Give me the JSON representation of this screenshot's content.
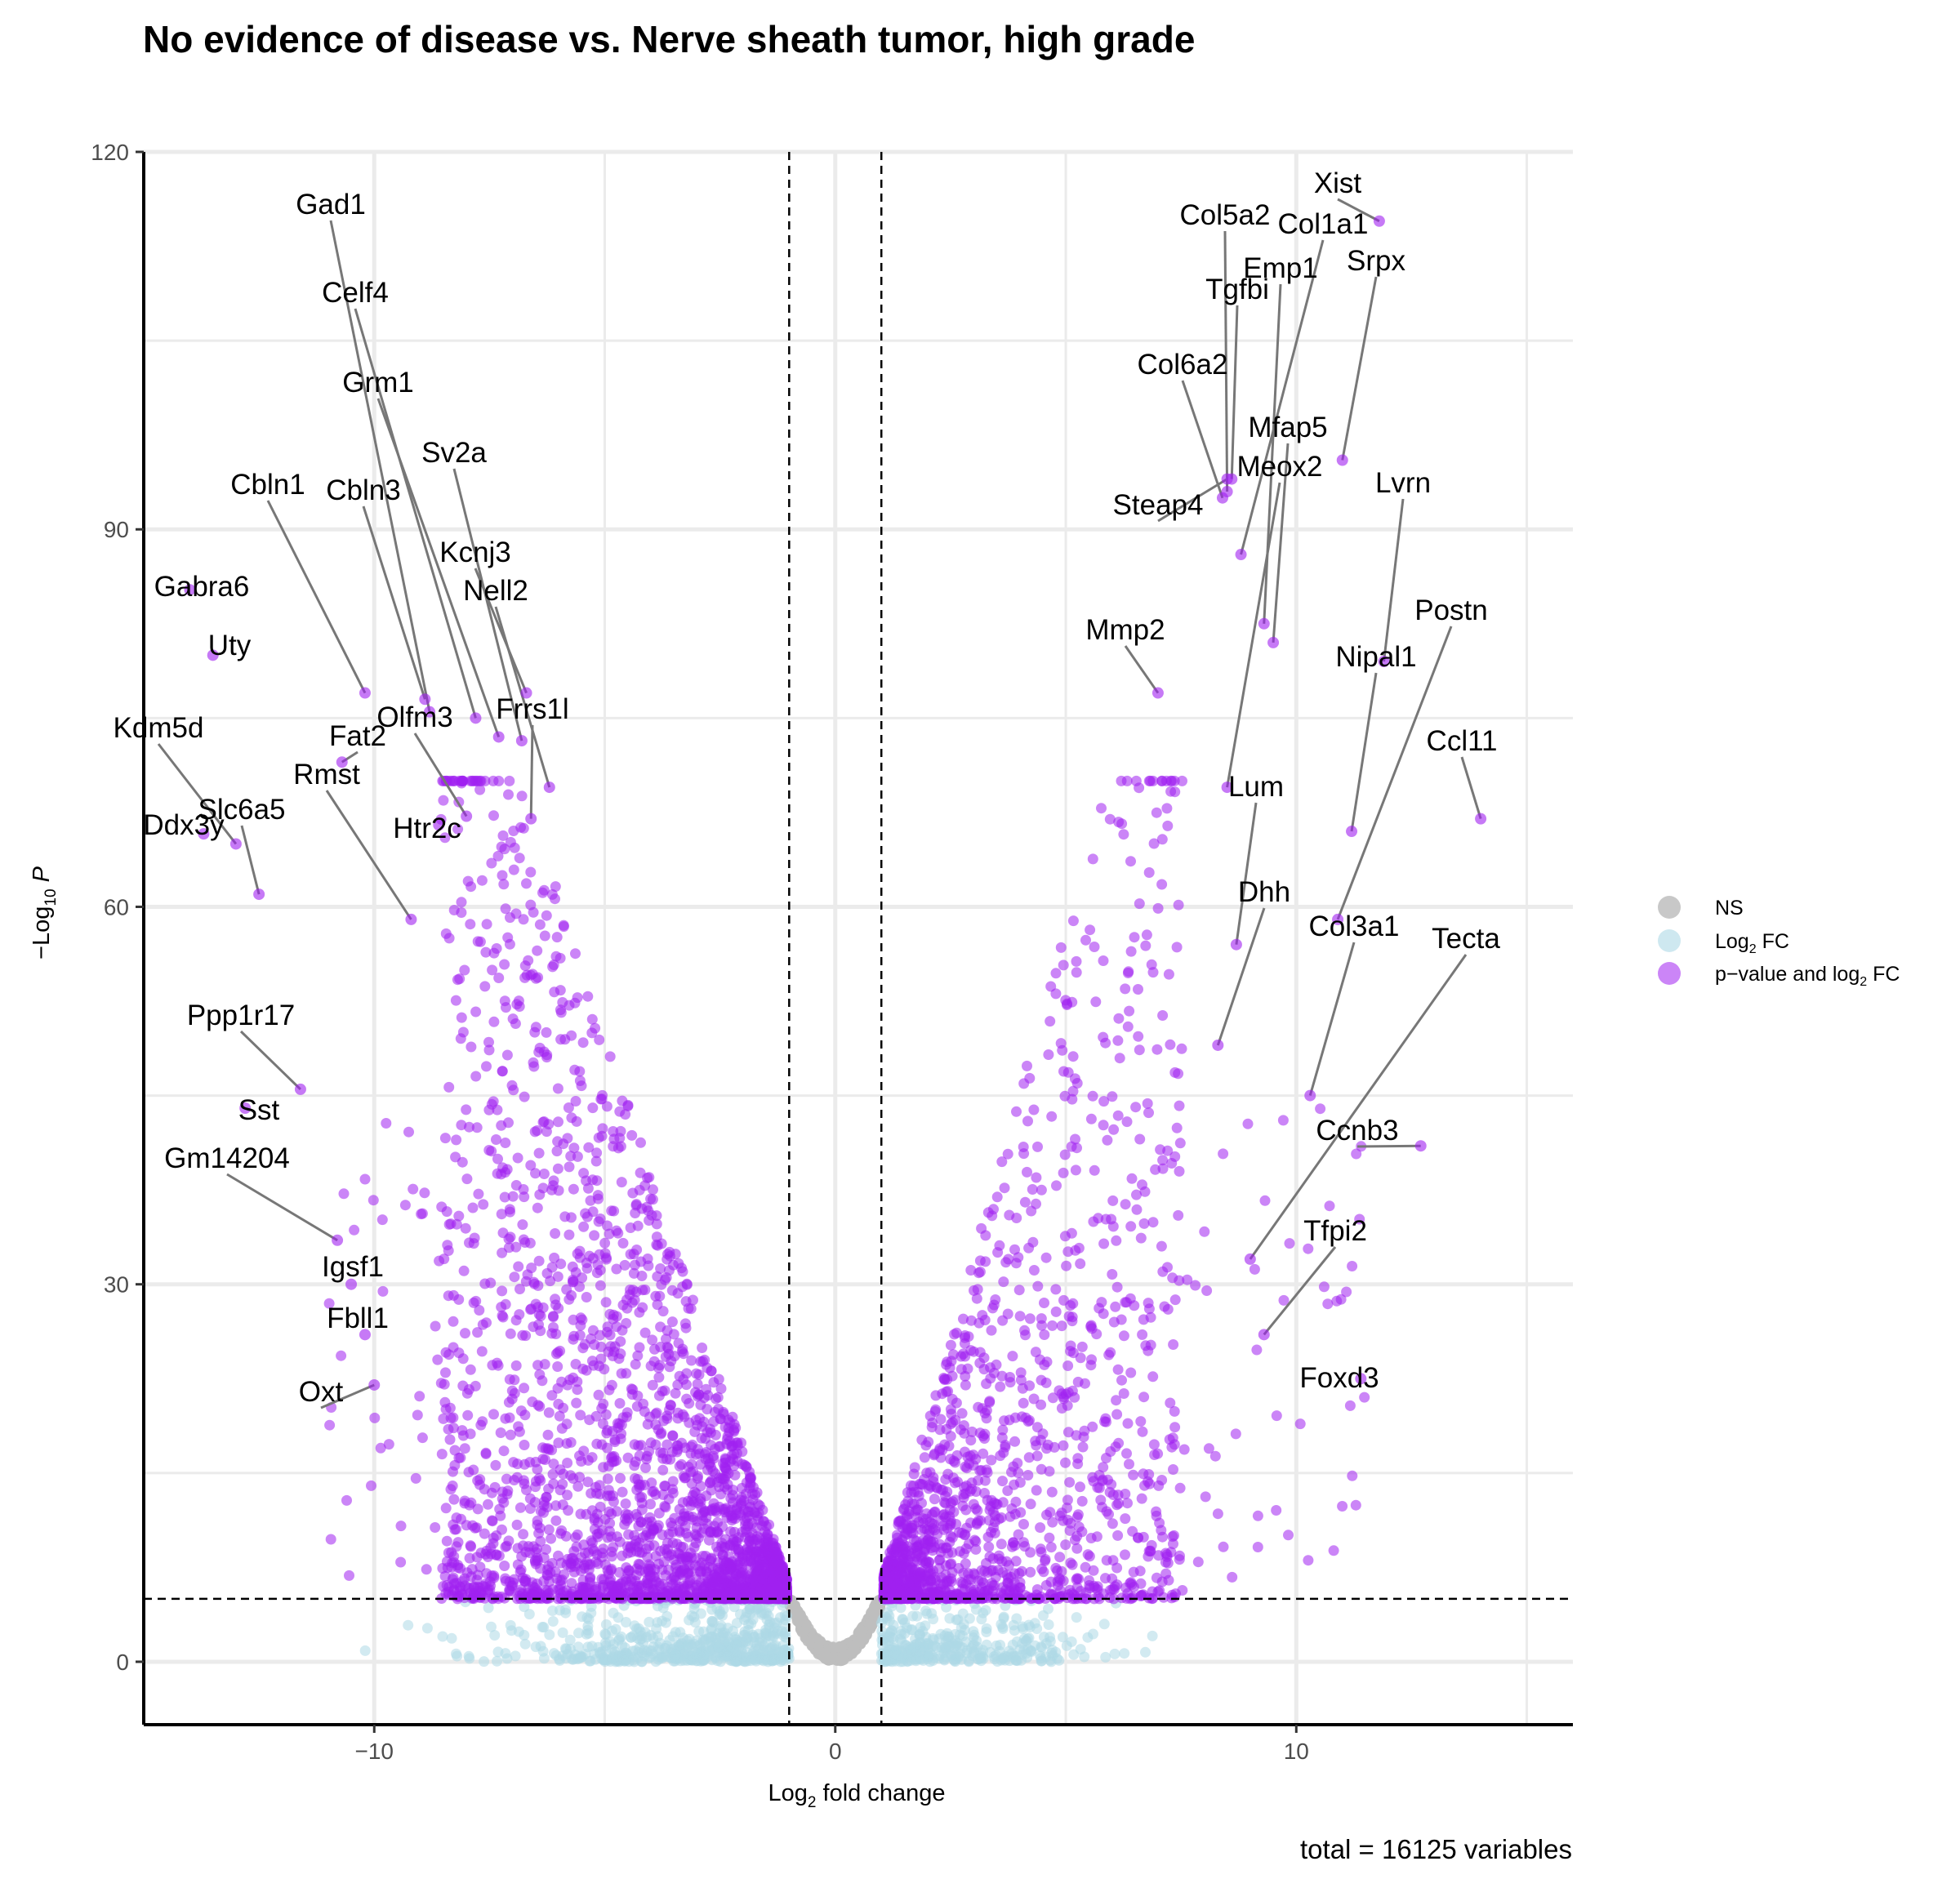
{
  "chart_data": {
    "type": "scatter",
    "title": "No evidence of disease vs. Nerve sheath tumor, high grade",
    "xlabel": "Log",
    "xlabel_sub": "2",
    "xlabel_rest": " fold change",
    "ylabel": "−Log",
    "ylabel_sub": "10",
    "ylabel_rest": " P",
    "xlim": [
      -15,
      16
    ],
    "ylim": [
      -5,
      120
    ],
    "x_ticks": [
      -10,
      0,
      10
    ],
    "x_tick_labels": [
      "−10",
      "0",
      "10"
    ],
    "y_ticks": [
      0,
      30,
      60,
      90,
      120
    ],
    "y_tick_labels": [
      "0",
      "30",
      "60",
      "90",
      "120"
    ],
    "fc_cutoff": 1,
    "p_cutoff": 5,
    "grid": true,
    "total_variables": 16125,
    "caption": "total = 16125 variables",
    "legend": {
      "position": "right",
      "entries": [
        {
          "name": "NS",
          "color": "#c8c8c8"
        },
        {
          "name": "Log",
          "sub": "2",
          "rest": " FC",
          "color": "#add8e6"
        },
        {
          "name": "p−value and log",
          "sub": "2",
          "rest": " FC",
          "color": "#a020f0"
        }
      ]
    },
    "colors": {
      "ns": "#bebebe",
      "fc": "#add8e6",
      "both": "#a020f0"
    },
    "labeled_genes": [
      {
        "gene": "Gad1",
        "x": -8.8,
        "y": 75.5
      },
      {
        "gene": "Celf4",
        "x": -7.8,
        "y": 75.0
      },
      {
        "gene": "Grm1",
        "x": -7.3,
        "y": 73.5
      },
      {
        "gene": "Sv2a",
        "x": -6.8,
        "y": 73.2
      },
      {
        "gene": "Cbln1",
        "x": -10.2,
        "y": 77.0
      },
      {
        "gene": "Cbln3",
        "x": -8.9,
        "y": 76.5
      },
      {
        "gene": "Kcnj3",
        "x": -6.7,
        "y": 77.0
      },
      {
        "gene": "Nell2",
        "x": -6.2,
        "y": 69.5
      },
      {
        "gene": "Gabra6",
        "x": -14.0,
        "y": 85.2
      },
      {
        "gene": "Uty",
        "x": -13.5,
        "y": 80.0
      },
      {
        "gene": "Frrs1l",
        "x": -6.6,
        "y": 67.0
      },
      {
        "gene": "Fat2",
        "x": -10.7,
        "y": 71.5
      },
      {
        "gene": "Olfm3",
        "x": -8.0,
        "y": 67.2
      },
      {
        "gene": "Kdm5d",
        "x": -13.0,
        "y": 65.0
      },
      {
        "gene": "Rmst",
        "x": -9.2,
        "y": 59.0
      },
      {
        "gene": "Slc6a5",
        "x": -12.5,
        "y": 61.0
      },
      {
        "gene": "Htr2c",
        "x": -8.6,
        "y": 66.5
      },
      {
        "gene": "Ddx3y",
        "x": -13.7,
        "y": 65.8
      },
      {
        "gene": "Ppp1r17",
        "x": -11.6,
        "y": 45.5
      },
      {
        "gene": "Sst",
        "x": -12.8,
        "y": 44.0
      },
      {
        "gene": "Gm14204",
        "x": -10.8,
        "y": 33.5
      },
      {
        "gene": "Igsf1",
        "x": -10.5,
        "y": 30.0
      },
      {
        "gene": "Fbll1",
        "x": -10.2,
        "y": 26.0
      },
      {
        "gene": "Oxt",
        "x": -10.0,
        "y": 22.0
      },
      {
        "gene": "Xist",
        "x": 11.8,
        "y": 114.5
      },
      {
        "gene": "Col5a2",
        "x": 8.5,
        "y": 93.0
      },
      {
        "gene": "Col1a1",
        "x": 8.8,
        "y": 88.0
      },
      {
        "gene": "Emp1",
        "x": 9.3,
        "y": 82.5
      },
      {
        "gene": "Tgfbi",
        "x": 8.6,
        "y": 94.0
      },
      {
        "gene": "Srpx",
        "x": 11.0,
        "y": 95.5
      },
      {
        "gene": "Col6a2",
        "x": 8.4,
        "y": 92.5
      },
      {
        "gene": "Mfap5",
        "x": 9.5,
        "y": 81.0
      },
      {
        "gene": "Meox2",
        "x": 8.5,
        "y": 69.5
      },
      {
        "gene": "Lvrn",
        "x": 11.9,
        "y": 79.5
      },
      {
        "gene": "Steap4",
        "x": 8.5,
        "y": 94.0
      },
      {
        "gene": "Mmp2",
        "x": 7.0,
        "y": 77.0
      },
      {
        "gene": "Postn",
        "x": 10.9,
        "y": 59.0
      },
      {
        "gene": "Nipal1",
        "x": 11.2,
        "y": 66.0
      },
      {
        "gene": "Ccl11",
        "x": 14.0,
        "y": 67.0
      },
      {
        "gene": "Lum",
        "x": 8.7,
        "y": 57.0
      },
      {
        "gene": "Dhh",
        "x": 8.3,
        "y": 49.0
      },
      {
        "gene": "Col3a1",
        "x": 10.3,
        "y": 45.0
      },
      {
        "gene": "Tecta",
        "x": 9.0,
        "y": 32.0
      },
      {
        "gene": "Ccnb3",
        "x": 12.7,
        "y": 41.0
      },
      {
        "gene": "Tfpi2",
        "x": 9.3,
        "y": 26.0
      },
      {
        "gene": "Foxd3",
        "x": 11.4,
        "y": 22.5
      }
    ]
  }
}
